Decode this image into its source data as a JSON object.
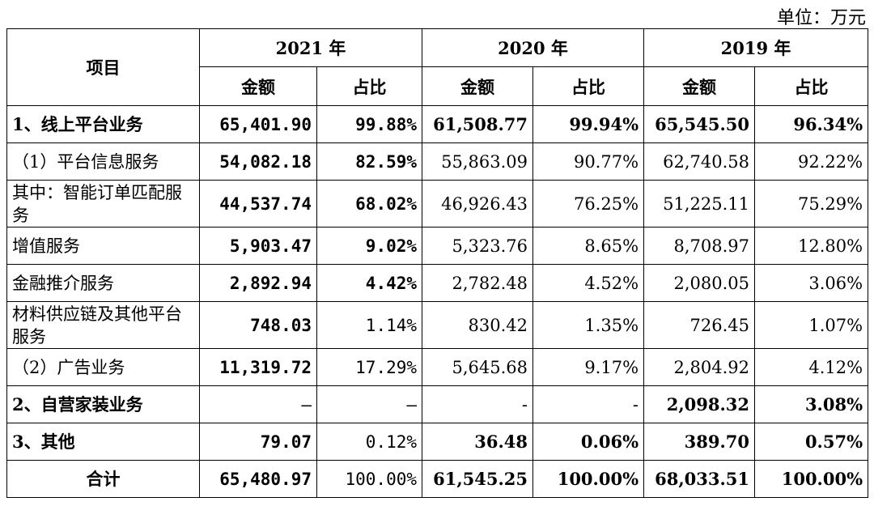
{
  "unit_label": "单位：万元",
  "header": {
    "item_label": "项目",
    "years": [
      "2021 年",
      "2020 年",
      "2019 年"
    ],
    "amount_label": "金额",
    "ratio_label": "占比"
  },
  "rows": [
    {
      "label": "1、线上平台业务",
      "v": [
        "65,401.90",
        "99.88%",
        "61,508.77",
        "99.94%",
        "65,545.50",
        "96.34%"
      ]
    },
    {
      "label": "（1）平台信息服务",
      "v": [
        "54,082.18",
        "82.59%",
        "55,863.09",
        "90.77%",
        "62,740.58",
        "92.22%"
      ]
    },
    {
      "label": "其中：智能订单匹配服务",
      "v": [
        "44,537.74",
        "68.02%",
        "46,926.43",
        "76.25%",
        "51,225.11",
        "75.29%"
      ]
    },
    {
      "label": "增值服务",
      "v": [
        "5,903.47",
        "9.02%",
        "5,323.76",
        "8.65%",
        "8,708.97",
        "12.80%"
      ]
    },
    {
      "label": "金融推介服务",
      "v": [
        "2,892.94",
        "4.42%",
        "2,782.48",
        "4.52%",
        "2,080.05",
        "3.06%"
      ]
    },
    {
      "label": "材料供应链及其他平台服务",
      "v": [
        "748.03",
        "1.14%",
        "830.42",
        "1.35%",
        "726.45",
        "1.07%"
      ]
    },
    {
      "label": "（2）广告业务",
      "v": [
        "11,319.72",
        "17.29%",
        "5,645.68",
        "9.17%",
        "2,804.92",
        "4.12%"
      ]
    },
    {
      "label": "2、自营家装业务",
      "v": [
        "–",
        "–",
        "-",
        "-",
        "2,098.32",
        "3.08%"
      ]
    },
    {
      "label": "3、其他",
      "v": [
        "79.07",
        "0.12%",
        "36.48",
        "0.06%",
        "389.70",
        "0.57%"
      ]
    },
    {
      "label": "合计",
      "v": [
        "65,480.97",
        "100.00%",
        "61,545.25",
        "100.00%",
        "68,033.51",
        "100.00%"
      ]
    }
  ]
}
